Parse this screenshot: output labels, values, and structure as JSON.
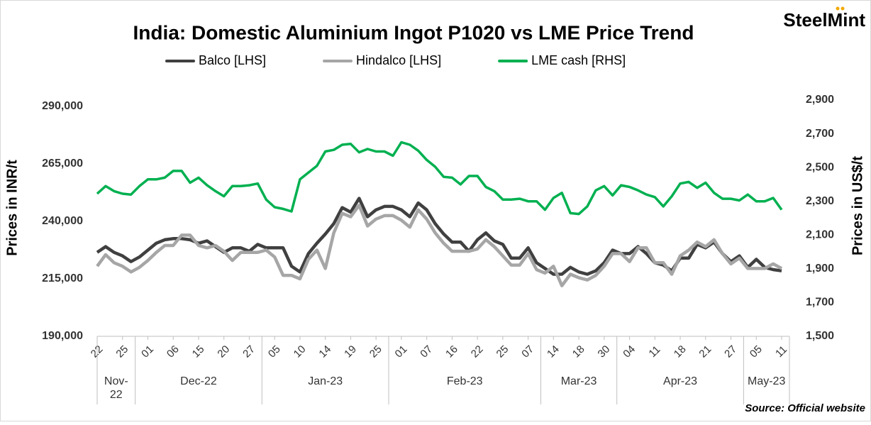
{
  "logo": "SteelMint",
  "source": "Source: Official website",
  "chart_data": {
    "type": "line",
    "title": "India: Domestic Aluminium Ingot P1020 vs LME Price Trend",
    "y_label": "Prices in INR/t",
    "y2_label": "Prices in US$/t",
    "categories": [
      "22",
      null,
      null,
      "25",
      null,
      null,
      "01",
      null,
      null,
      "06",
      null,
      null,
      "15",
      null,
      null,
      "20",
      null,
      null,
      "27",
      null,
      null,
      "05",
      null,
      null,
      "10",
      null,
      null,
      "14",
      null,
      null,
      "19",
      null,
      null,
      "25",
      null,
      null,
      "01",
      null,
      null,
      "07",
      null,
      null,
      "16",
      null,
      null,
      "22",
      null,
      null,
      "25",
      null,
      null,
      "07",
      null,
      null,
      "14",
      null,
      null,
      "18",
      null,
      null,
      "30",
      null,
      null,
      "04",
      null,
      null,
      "11",
      null,
      null,
      "18",
      null,
      null,
      "21",
      null,
      null,
      "27",
      null,
      null,
      "05",
      null,
      null,
      "11"
    ],
    "x_groups": [
      {
        "label": "Nov-22",
        "from": 0,
        "to": 3
      },
      {
        "label": "Dec-22",
        "from": 6,
        "to": 18
      },
      {
        "label": "Jan-23",
        "from": 21,
        "to": 33
      },
      {
        "label": "Feb-23",
        "from": 36,
        "to": 51
      },
      {
        "label": "Mar-23",
        "from": 54,
        "to": 60
      },
      {
        "label": "Apr-23",
        "from": 63,
        "to": 75
      },
      {
        "label": "May-23",
        "from": 78,
        "to": 81
      }
    ],
    "ylim": [
      190000,
      290000
    ],
    "yticks": [
      {
        "value": 190000,
        "label": "190,000"
      },
      {
        "value": 215000,
        "label": "215,000"
      },
      {
        "value": 240000,
        "label": "240,000"
      },
      {
        "value": 265000,
        "label": "265,000"
      },
      {
        "value": 290000,
        "label": "290,000"
      }
    ],
    "y2lim": [
      1500,
      2900
    ],
    "y2ticks": [
      {
        "value": 1500,
        "label": "1,500"
      },
      {
        "value": 1700,
        "label": "1,700"
      },
      {
        "value": 1900,
        "label": "1,900"
      },
      {
        "value": 2100,
        "label": "2,100"
      },
      {
        "value": 2300,
        "label": "2,300"
      },
      {
        "value": 2500,
        "label": "2,500"
      },
      {
        "value": 2700,
        "label": "2,700"
      },
      {
        "value": 2900,
        "label": "2,900"
      }
    ],
    "legend": "top",
    "series": [
      {
        "name": "Balco [LHS]",
        "color": "#404040",
        "values": [
          226500,
          229000,
          226500,
          225000,
          222500,
          224500,
          227500,
          230500,
          232000,
          232500,
          232500,
          232000,
          230500,
          231500,
          229000,
          226500,
          228500,
          228500,
          227000,
          230000,
          228500,
          228500,
          228500,
          220500,
          218000,
          226000,
          230500,
          234500,
          239000,
          246000,
          244000,
          250000,
          242000,
          245000,
          246500,
          246500,
          245000,
          242000,
          248000,
          245000,
          239000,
          234500,
          231000,
          231000,
          227000,
          232000,
          235000,
          231500,
          230000,
          224000,
          224000,
          228500,
          222000,
          219500,
          217000,
          217000,
          220000,
          218000,
          217000,
          218500,
          222000,
          227500,
          226000,
          226000,
          229000,
          226000,
          222000,
          221000,
          218500,
          224000,
          224000,
          230000,
          228500,
          231000,
          226000,
          222500,
          225000,
          220000,
          223500,
          220000,
          219000,
          218500
        ]
      },
      {
        "name": "Hindalco [LHS]",
        "color": "#a6a6a6",
        "values": [
          220500,
          225500,
          222000,
          220500,
          218000,
          220000,
          223000,
          226500,
          229500,
          229500,
          234000,
          234000,
          229500,
          228500,
          229500,
          227000,
          223000,
          226500,
          226500,
          226500,
          227500,
          224500,
          216500,
          216500,
          215000,
          223500,
          227500,
          219500,
          235000,
          243500,
          242000,
          247000,
          238000,
          241000,
          242500,
          242500,
          240500,
          237500,
          245000,
          241000,
          235000,
          230500,
          227000,
          227000,
          227000,
          228000,
          232000,
          229000,
          225000,
          221000,
          221000,
          226000,
          219000,
          217500,
          220500,
          212000,
          217000,
          215500,
          214500,
          216500,
          220500,
          226000,
          226000,
          222500,
          228500,
          228500,
          222000,
          222000,
          217000,
          225000,
          227500,
          231000,
          229000,
          232000,
          226000,
          221500,
          224000,
          219500,
          219500,
          219500,
          221500,
          219500
        ]
      },
      {
        "name": "LME cash [RHS]",
        "color": "#00b050",
        "axis": "y2",
        "values": [
          2345,
          2390,
          2360,
          2345,
          2340,
          2390,
          2430,
          2430,
          2440,
          2480,
          2480,
          2410,
          2440,
          2395,
          2360,
          2330,
          2390,
          2390,
          2395,
          2405,
          2310,
          2265,
          2255,
          2240,
          2430,
          2470,
          2510,
          2595,
          2605,
          2635,
          2640,
          2590,
          2610,
          2595,
          2595,
          2570,
          2650,
          2635,
          2600,
          2545,
          2505,
          2445,
          2440,
          2400,
          2450,
          2450,
          2385,
          2360,
          2310,
          2310,
          2315,
          2300,
          2300,
          2250,
          2320,
          2350,
          2230,
          2225,
          2270,
          2365,
          2390,
          2335,
          2395,
          2385,
          2365,
          2340,
          2325,
          2270,
          2330,
          2405,
          2415,
          2380,
          2410,
          2350,
          2315,
          2315,
          2305,
          2340,
          2300,
          2300,
          2320,
          2250
        ]
      }
    ]
  }
}
